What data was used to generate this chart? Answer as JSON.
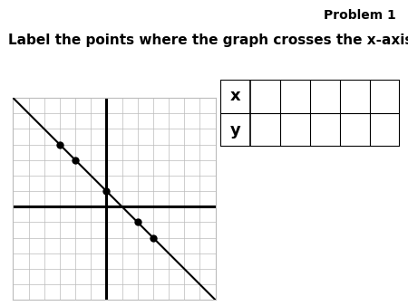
{
  "title": "Problem 1",
  "subtitle": "Label the points where the graph crosses the x-axis.",
  "background_color": "#ffffff",
  "grid_color": "#bbbbbb",
  "axis_color": "#000000",
  "line_color": "#000000",
  "dot_color": "#000000",
  "line_slope": -1,
  "line_intercept": 1,
  "x_min": -6,
  "x_max": 7,
  "y_min": -6,
  "y_max": 7,
  "marked_dots": [
    [
      -3,
      4
    ],
    [
      -2,
      3
    ],
    [
      0,
      1
    ],
    [
      2,
      -1
    ],
    [
      3,
      -2
    ]
  ],
  "table_x_label": "x",
  "table_y_label": "y",
  "table_data_cols": 5
}
